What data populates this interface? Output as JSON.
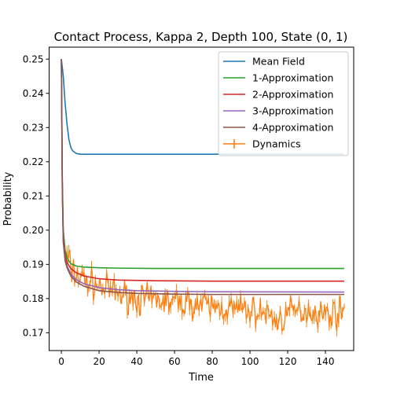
{
  "chart_data": {
    "type": "line",
    "title": "Contact Process, Kappa 2, Depth 100, State (0, 1)",
    "xlabel": "Time",
    "ylabel": "Probability",
    "xlim": [
      -6.5,
      155
    ],
    "ylim": [
      0.1648,
      0.2535
    ],
    "xticks": [
      0,
      20,
      40,
      60,
      80,
      100,
      120,
      140
    ],
    "yticks": [
      0.17,
      0.18,
      0.19,
      0.2,
      0.21,
      0.22,
      0.23,
      0.24,
      0.25
    ],
    "ytick_labels": [
      "0.17",
      "0.18",
      "0.19",
      "0.20",
      "0.21",
      "0.22",
      "0.23",
      "0.24",
      "0.25"
    ],
    "grid": false,
    "legend_position": "top-right",
    "series": [
      {
        "name": "Mean Field",
        "color": "#1f77b4",
        "x": [
          0,
          1,
          2,
          3,
          4,
          5,
          6,
          8,
          10,
          15,
          20,
          40,
          80,
          120,
          150
        ],
        "y": [
          0.25,
          0.245,
          0.237,
          0.231,
          0.2265,
          0.2242,
          0.2232,
          0.2224,
          0.2222,
          0.2222,
          0.2222,
          0.2222,
          0.2222,
          0.2222,
          0.2222
        ]
      },
      {
        "name": "1-Approximation",
        "color": "#2ca02c",
        "x": [
          0,
          0.5,
          1,
          2,
          3,
          5,
          8,
          12,
          20,
          30,
          50,
          80,
          150
        ],
        "y": [
          0.25,
          0.215,
          0.2,
          0.194,
          0.1918,
          0.1902,
          0.1895,
          0.1892,
          0.189,
          0.1889,
          0.1888,
          0.1888,
          0.1888
        ]
      },
      {
        "name": "2-Approximation",
        "color": "#d62728",
        "x": [
          0,
          0.5,
          1,
          2,
          3,
          5,
          8,
          12,
          20,
          30,
          50,
          80,
          150
        ],
        "y": [
          0.25,
          0.213,
          0.198,
          0.1925,
          0.1905,
          0.1888,
          0.1875,
          0.1866,
          0.1858,
          0.1854,
          0.1852,
          0.1851,
          0.1851
        ]
      },
      {
        "name": "3-Approximation",
        "color": "#9467bd",
        "x": [
          0,
          0.5,
          1,
          2,
          3,
          5,
          8,
          12,
          20,
          30,
          40,
          60,
          80,
          150
        ],
        "y": [
          0.25,
          0.212,
          0.197,
          0.1915,
          0.1895,
          0.1872,
          0.1855,
          0.1843,
          0.1832,
          0.1826,
          0.1823,
          0.1821,
          0.182,
          0.1819
        ]
      },
      {
        "name": "4-Approximation",
        "color": "#8c564b",
        "x": [
          0,
          0.5,
          1,
          2,
          3,
          5,
          8,
          12,
          20,
          30,
          40,
          60,
          80,
          150
        ],
        "y": [
          0.25,
          0.212,
          0.1965,
          0.191,
          0.189,
          0.1866,
          0.1848,
          0.1836,
          0.1823,
          0.1818,
          0.1815,
          0.1813,
          0.1812,
          0.1812
        ]
      },
      {
        "name": "Dynamics",
        "color": "#ff7f0e",
        "error_bars": true,
        "x": [
          0,
          0.5,
          1,
          2,
          3,
          5,
          8,
          12,
          20,
          30,
          40,
          50,
          60,
          70,
          80,
          90,
          100,
          110,
          115,
          120,
          130,
          140,
          150
        ],
        "y": [
          0.25,
          0.21,
          0.196,
          0.193,
          0.191,
          0.189,
          0.187,
          0.1855,
          0.1835,
          0.1815,
          0.18,
          0.1795,
          0.179,
          0.1785,
          0.1775,
          0.177,
          0.1765,
          0.1755,
          0.173,
          0.176,
          0.1765,
          0.1755,
          0.176
        ]
      }
    ]
  }
}
